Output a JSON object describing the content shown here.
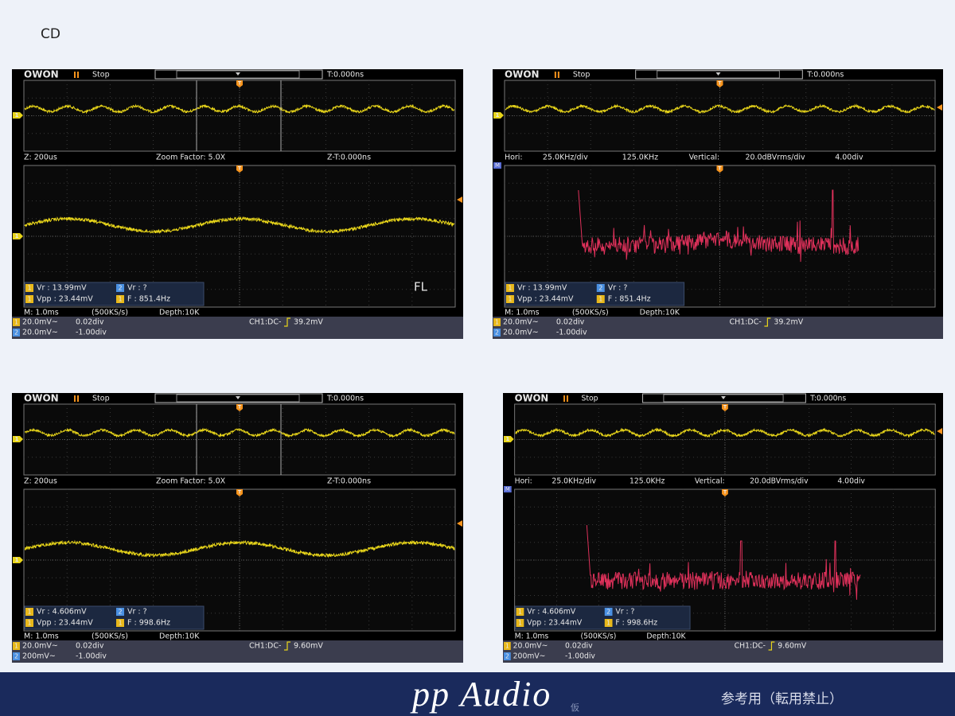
{
  "page_label": "CD",
  "markers": {
    "trigger": "T",
    "math": "M"
  },
  "scopes": [
    {
      "header": {
        "logo": "OWON",
        "state": "Stop",
        "trigger_time": "T:0.000ns"
      },
      "mode": "zoom",
      "info": [
        "Z: 200us",
        "Zoom Factor: 5.0X",
        "Z-T:0.000ns"
      ],
      "measurements": [
        {
          "ch": "1",
          "text": "Vr : 13.99mV"
        },
        {
          "ch": "2",
          "text": "Vr :    ?"
        },
        {
          "ch": "1",
          "text": "Vpp : 23.44mV"
        },
        {
          "ch": "1",
          "text": "F : 851.4Hz"
        }
      ],
      "label": "FL",
      "status": [
        "M: 1.0ms",
        "(500KS/s)",
        "Depth:10K"
      ],
      "channels": [
        {
          "ch": "1",
          "scale": "20.0mV~",
          "offset": "0.02div"
        },
        {
          "ch": "2",
          "scale": "20.0mV~",
          "offset": "-1.00div"
        }
      ],
      "trigger": {
        "coupling": "CH1:DC-",
        "level": "39.2mV"
      }
    },
    {
      "header": {
        "logo": "OWON",
        "state": "Stop",
        "trigger_time": "T:0.000ns"
      },
      "mode": "fft",
      "info": [
        "Hori:",
        "25.0KHz/div",
        "125.0KHz",
        "Vertical:",
        "20.0dBVrms/div",
        "4.00div"
      ],
      "measurements": [
        {
          "ch": "1",
          "text": "Vr : 13.99mV"
        },
        {
          "ch": "2",
          "text": "Vr :    ?"
        },
        {
          "ch": "1",
          "text": "Vpp : 23.44mV"
        },
        {
          "ch": "1",
          "text": "F : 851.4Hz"
        }
      ],
      "status": [
        "M: 1.0ms",
        "(500KS/s)",
        "Depth:10K"
      ],
      "channels": [
        {
          "ch": "1",
          "scale": "20.0mV~",
          "offset": "0.02div"
        },
        {
          "ch": "2",
          "scale": "20.0mV~",
          "offset": "-1.00div"
        }
      ],
      "trigger": {
        "coupling": "CH1:DC-",
        "level": "39.2mV"
      }
    },
    {
      "header": {
        "logo": "OWON",
        "state": "Stop",
        "trigger_time": "T:0.000ns"
      },
      "mode": "zoom",
      "info": [
        "Z: 200us",
        "Zoom Factor: 5.0X",
        "Z-T:0.000ns"
      ],
      "measurements": [
        {
          "ch": "1",
          "text": "Vr : 4.606mV"
        },
        {
          "ch": "2",
          "text": "Vr :    ?"
        },
        {
          "ch": "1",
          "text": "Vpp : 23.44mV"
        },
        {
          "ch": "1",
          "text": "F : 998.6Hz"
        }
      ],
      "status": [
        "M: 1.0ms",
        "(500KS/s)",
        "Depth:10K"
      ],
      "channels": [
        {
          "ch": "1",
          "scale": "20.0mV~",
          "offset": "0.02div"
        },
        {
          "ch": "2",
          "scale": "200mV~",
          "offset": "-1.00div"
        }
      ],
      "trigger": {
        "coupling": "CH1:DC-",
        "level": "9.60mV"
      }
    },
    {
      "header": {
        "logo": "OWON",
        "state": "Stop",
        "trigger_time": "T:0.000ns"
      },
      "mode": "fft",
      "info": [
        "Hori:",
        "25.0KHz/div",
        "125.0KHz",
        "Vertical:",
        "20.0dBVrms/div",
        "4.00div"
      ],
      "measurements": [
        {
          "ch": "1",
          "text": "Vr : 4.606mV"
        },
        {
          "ch": "2",
          "text": "Vr :    ?"
        },
        {
          "ch": "1",
          "text": "Vpp : 23.44mV"
        },
        {
          "ch": "1",
          "text": "F : 998.6Hz"
        }
      ],
      "status": [
        "M: 1.0ms",
        "(500KS/s)",
        "Depth:10K"
      ],
      "channels": [
        {
          "ch": "1",
          "scale": "20.0mV~",
          "offset": "0.02div"
        },
        {
          "ch": "2",
          "scale": "200mV~",
          "offset": "-1.00div"
        }
      ],
      "trigger": {
        "coupling": "CH1:DC-",
        "level": "9.60mV"
      }
    }
  ],
  "footer": {
    "brand": "pp Audio",
    "brand_sub": "仮",
    "note": "参考用（転用禁止）"
  }
}
